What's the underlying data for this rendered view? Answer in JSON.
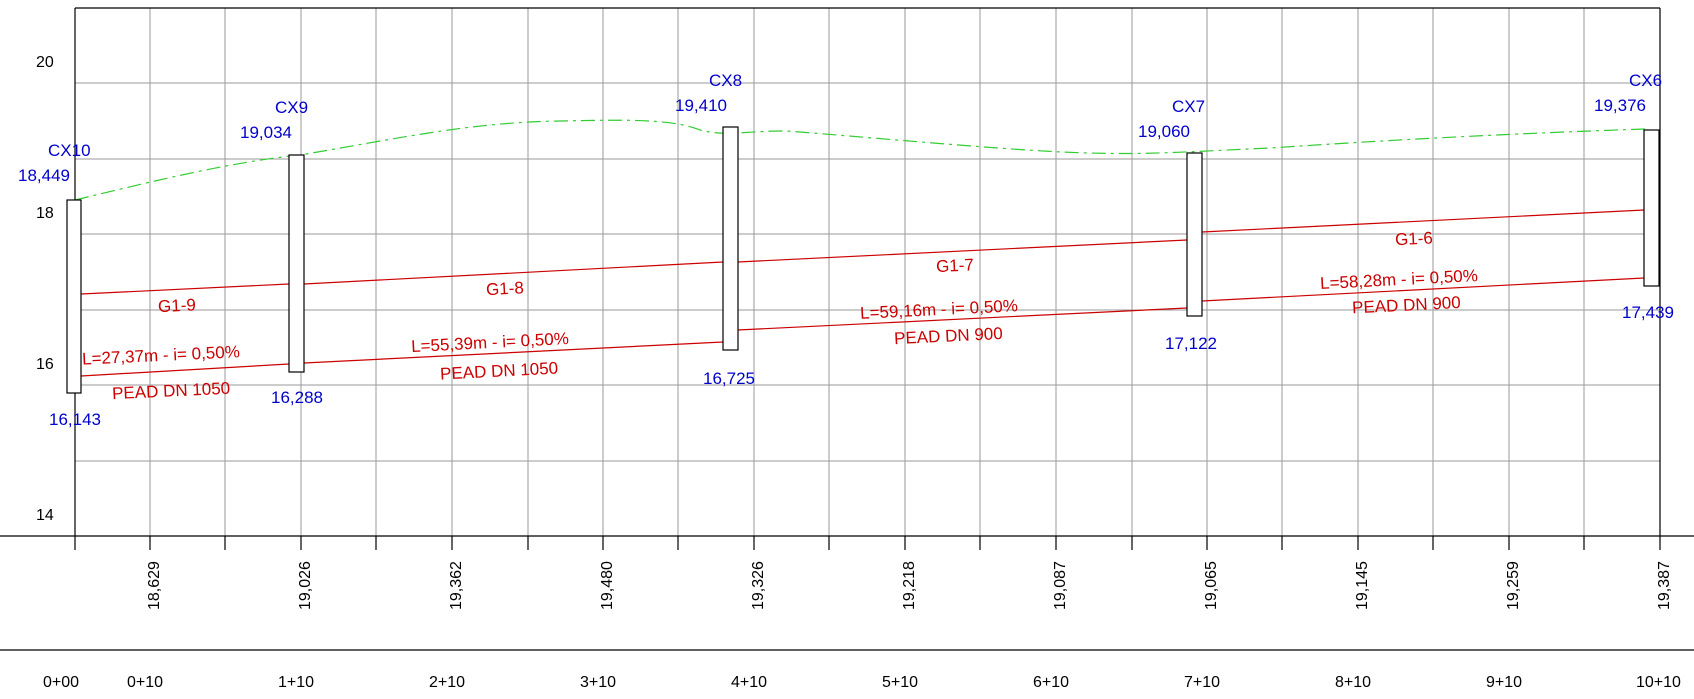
{
  "y_axis": {
    "ticks": [
      "20",
      "18",
      "16",
      "14"
    ]
  },
  "manholes": [
    {
      "name": "CX10",
      "ground": "18,449",
      "invert": "16,143"
    },
    {
      "name": "CX9",
      "ground": "19,034",
      "invert": "16,288"
    },
    {
      "name": "CX8",
      "ground": "19,410",
      "invert": "16,725"
    },
    {
      "name": "CX7",
      "ground": "19,060",
      "invert": "17,122"
    },
    {
      "name": "CX6",
      "ground": "19,376",
      "invert": "17,439"
    }
  ],
  "segments": [
    {
      "id": "G1-9",
      "length": "L=27,37m  - i= 0,50%",
      "pipe": "PEAD DN 1050"
    },
    {
      "id": "G1-8",
      "length": "L=55,39m  - i= 0,50%",
      "pipe": "PEAD DN 1050"
    },
    {
      "id": "G1-7",
      "length": "L=59,16m  - i= 0,50%",
      "pipe": "PEAD DN 900"
    },
    {
      "id": "G1-6",
      "length": "L=58,28m  - i= 0,50%",
      "pipe": "PEAD DN 900"
    }
  ],
  "terrain_elevations": [
    "18,629",
    "19,026",
    "19,362",
    "19,480",
    "19,326",
    "19,218",
    "19,087",
    "19,065",
    "19,145",
    "19,259",
    "19,387"
  ],
  "stations": [
    "0+00",
    "0+10",
    "1+10",
    "2+10",
    "3+10",
    "4+10",
    "5+10",
    "6+10",
    "7+10",
    "8+10",
    "9+10",
    "10+10"
  ],
  "colors": {
    "labels": "#0000cc",
    "pipes": "#cc0000",
    "terrain": "#33cc33",
    "grid": "#9a9a9a"
  }
}
